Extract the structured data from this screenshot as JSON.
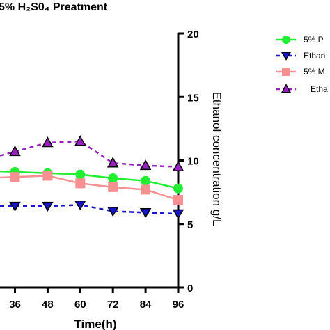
{
  "chart_data": {
    "type": "line",
    "title": "5% H₂S0₄ Preatment",
    "xlabel": "Time(h)",
    "ylabel": "Ethanol concentration g/L",
    "x": [
      36,
      48,
      60,
      72,
      84,
      96
    ],
    "x_ticks": [
      "36",
      "48",
      "60",
      "72",
      "84",
      "96"
    ],
    "xlim": [
      30.5,
      96
    ],
    "ylim": [
      0,
      20
    ],
    "y_ticks": [
      "0",
      "5",
      "10",
      "15",
      "20"
    ],
    "y_axis_side": "right",
    "grid": false,
    "legend_position": "top-right",
    "series": [
      {
        "name": "5% P",
        "color": "#22ee33",
        "marker": "circle",
        "dash": "solid",
        "values": [
          9.1,
          9.0,
          8.9,
          8.6,
          8.4,
          7.8
        ]
      },
      {
        "name": "Ethan",
        "color": "#1616cc",
        "marker": "triangle-down",
        "dash": "dashed",
        "values": [
          6.4,
          6.4,
          6.5,
          6.0,
          5.9,
          5.8
        ]
      },
      {
        "name": "5% M",
        "color": "#f79090",
        "marker": "square",
        "dash": "solid",
        "values": [
          8.7,
          8.8,
          8.2,
          7.9,
          7.7,
          6.9
        ]
      },
      {
        "name": "Etha",
        "color": "#9a1fc0",
        "marker": "triangle-up",
        "dash": "dashed",
        "values": [
          10.7,
          11.4,
          11.5,
          9.8,
          9.6,
          9.5
        ]
      }
    ]
  }
}
